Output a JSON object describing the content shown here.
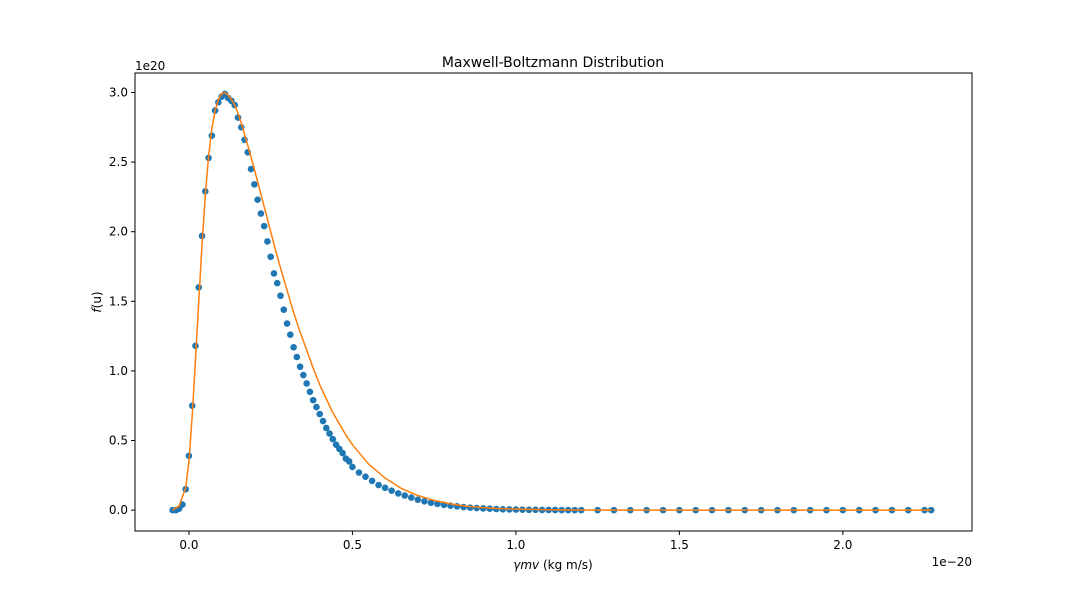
{
  "chart_data": {
    "type": "scatter",
    "title": "Maxwell-Boltzmann Distribution",
    "xlabel_math": "γmv",
    "xlabel_unit": " (kg m/s)",
    "ylabel_f": "f",
    "ylabel_arg": "(u)",
    "x_offset_text": "1e−20",
    "y_offset_text": "1e20",
    "xlim": [
      -0.165,
      2.395
    ],
    "ylim": [
      -0.15,
      3.14
    ],
    "xticks": [
      0.0,
      0.5,
      1.0,
      1.5,
      2.0
    ],
    "xtick_labels": [
      "0.0",
      "0.5",
      "1.0",
      "1.5",
      "2.0"
    ],
    "yticks": [
      0.0,
      0.5,
      1.0,
      1.5,
      2.0,
      2.5,
      3.0
    ],
    "ytick_labels": [
      "0.0",
      "0.5",
      "1.0",
      "1.5",
      "2.0",
      "2.5",
      "3.0"
    ],
    "grid": false,
    "series": [
      {
        "kind": "scatter",
        "color": "#1f77b4",
        "x": [
          -0.05,
          -0.04,
          -0.03,
          -0.02,
          -0.01,
          0.0,
          0.01,
          0.02,
          0.03,
          0.04,
          0.05,
          0.06,
          0.07,
          0.08,
          0.09,
          0.1,
          0.11,
          0.12,
          0.13,
          0.14,
          0.15,
          0.16,
          0.17,
          0.18,
          0.19,
          0.2,
          0.21,
          0.22,
          0.23,
          0.24,
          0.25,
          0.26,
          0.27,
          0.28,
          0.29,
          0.3,
          0.31,
          0.32,
          0.33,
          0.34,
          0.35,
          0.36,
          0.37,
          0.38,
          0.39,
          0.4,
          0.41,
          0.42,
          0.43,
          0.44,
          0.45,
          0.46,
          0.47,
          0.48,
          0.49,
          0.5,
          0.52,
          0.54,
          0.56,
          0.58,
          0.6,
          0.62,
          0.64,
          0.66,
          0.68,
          0.7,
          0.72,
          0.74,
          0.76,
          0.78,
          0.8,
          0.82,
          0.84,
          0.86,
          0.88,
          0.9,
          0.92,
          0.94,
          0.96,
          0.98,
          1.0,
          1.02,
          1.04,
          1.06,
          1.08,
          1.1,
          1.12,
          1.14,
          1.16,
          1.18,
          1.2,
          1.25,
          1.3,
          1.35,
          1.4,
          1.45,
          1.5,
          1.55,
          1.6,
          1.65,
          1.7,
          1.75,
          1.8,
          1.85,
          1.9,
          1.95,
          2.0,
          2.05,
          2.1,
          2.15,
          2.2,
          2.25,
          2.27
        ],
        "y": [
          0.0,
          0.0,
          0.01,
          0.04,
          0.15,
          0.39,
          0.75,
          1.18,
          1.6,
          1.97,
          2.29,
          2.53,
          2.69,
          2.87,
          2.93,
          2.97,
          2.99,
          2.96,
          2.94,
          2.91,
          2.82,
          2.75,
          2.66,
          2.57,
          2.45,
          2.34,
          2.23,
          2.13,
          2.04,
          1.93,
          1.82,
          1.7,
          1.63,
          1.54,
          1.44,
          1.34,
          1.26,
          1.17,
          1.1,
          1.03,
          0.97,
          0.91,
          0.85,
          0.79,
          0.74,
          0.69,
          0.64,
          0.59,
          0.55,
          0.51,
          0.47,
          0.44,
          0.41,
          0.37,
          0.35,
          0.31,
          0.27,
          0.24,
          0.21,
          0.18,
          0.16,
          0.14,
          0.12,
          0.105,
          0.09,
          0.075,
          0.063,
          0.053,
          0.045,
          0.038,
          0.032,
          0.027,
          0.022,
          0.018,
          0.015,
          0.012,
          0.01,
          0.008,
          0.006,
          0.005,
          0.004,
          0.003,
          0.002,
          0.002,
          0.001,
          0.001,
          0.001,
          0.0,
          0.0,
          0.0,
          0.0,
          0.0,
          0.0,
          0.0,
          0.0,
          0.0,
          0.0,
          0.0,
          0.0,
          0.0,
          0.0,
          0.0,
          0.0,
          0.0,
          0.0,
          0.0,
          0.0,
          0.0,
          0.0,
          0.0,
          0.0,
          0.0,
          0.0
        ]
      },
      {
        "kind": "line",
        "color": "#ff7f0e",
        "x": [
          -0.05,
          -0.03,
          -0.01,
          0.0,
          0.01,
          0.02,
          0.03,
          0.04,
          0.05,
          0.06,
          0.07,
          0.08,
          0.09,
          0.1,
          0.11,
          0.12,
          0.13,
          0.14,
          0.15,
          0.16,
          0.18,
          0.2,
          0.22,
          0.24,
          0.26,
          0.28,
          0.3,
          0.32,
          0.34,
          0.36,
          0.38,
          0.4,
          0.42,
          0.44,
          0.46,
          0.48,
          0.5,
          0.55,
          0.6,
          0.65,
          0.7,
          0.75,
          0.8,
          0.85,
          0.9,
          0.95,
          1.0,
          1.1,
          1.2,
          1.4,
          1.6,
          1.8,
          2.0,
          2.27
        ],
        "y": [
          0.0,
          0.03,
          0.16,
          0.35,
          0.68,
          1.08,
          1.5,
          1.91,
          2.26,
          2.54,
          2.74,
          2.87,
          2.95,
          2.99,
          3.0,
          2.98,
          2.95,
          2.91,
          2.85,
          2.78,
          2.62,
          2.45,
          2.27,
          2.09,
          1.91,
          1.74,
          1.58,
          1.42,
          1.28,
          1.15,
          1.02,
          0.9,
          0.8,
          0.7,
          0.62,
          0.54,
          0.47,
          0.33,
          0.23,
          0.155,
          0.105,
          0.07,
          0.045,
          0.028,
          0.018,
          0.011,
          0.007,
          0.003,
          0.001,
          0.0,
          0.0,
          0.0,
          0.0,
          0.0
        ]
      }
    ]
  }
}
